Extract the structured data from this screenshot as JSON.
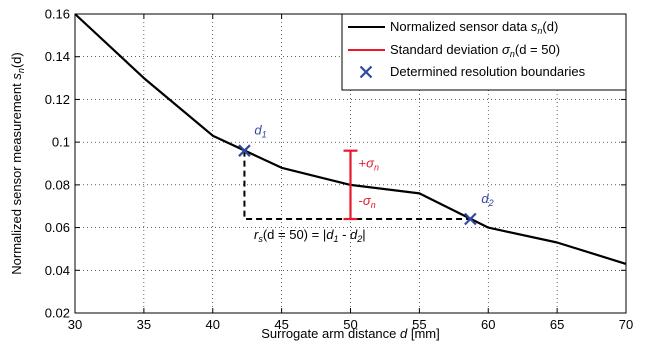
{
  "chart_data": {
    "type": "line",
    "xlabel_prefix": "Surrogate arm distance ",
    "xlabel_var": "d",
    "xlabel_unit": " [mm]",
    "ylabel_prefix": "Normalized sensor measurement ",
    "ylabel_var": "s",
    "ylabel_sub": "n",
    "ylabel_suffix": "(d)",
    "xlim": [
      30,
      70
    ],
    "ylim": [
      0.02,
      0.16
    ],
    "xticks": [
      30,
      35,
      40,
      45,
      50,
      55,
      60,
      65,
      70
    ],
    "yticks": [
      0.02,
      0.04,
      0.06,
      0.08,
      0.1,
      0.12,
      0.14,
      0.16
    ],
    "ytick_labels": [
      "0.02",
      "0.04",
      "0.06",
      "0.08",
      "0.1",
      "0.12",
      "0.14",
      "0.16"
    ],
    "grid": true,
    "legend_position": "top-right",
    "colors": {
      "series": "#000000",
      "stddev": "#e8192c",
      "marker": "#2e4a9e"
    },
    "series": [
      {
        "name": "Normalized sensor data s_n(d)",
        "x": [
          30,
          35,
          40,
          45,
          50,
          55,
          60,
          65,
          70
        ],
        "y": [
          0.16,
          0.13,
          0.103,
          0.088,
          0.08,
          0.076,
          0.06,
          0.053,
          0.043
        ]
      }
    ],
    "std_dev": {
      "x": 50,
      "center": 0.08,
      "upper": 0.096,
      "lower": 0.064
    },
    "boundaries": [
      {
        "label": "d",
        "sub": "1",
        "x": 42.3,
        "y": 0.096
      },
      {
        "label": "d",
        "sub": "2",
        "x": 58.7,
        "y": 0.064
      }
    ],
    "legend": [
      {
        "prefix": "Normalized sensor data ",
        "var": "s",
        "sub": "n",
        "suffix": "(d)"
      },
      {
        "prefix": "Standard deviation ",
        "var": "σ",
        "sub": "n",
        "suffix": "(d = 50)"
      },
      {
        "prefix": "Determined resolution boundaries",
        "var": "",
        "sub": "",
        "suffix": ""
      }
    ],
    "annotations": {
      "plus_sigma": {
        "sign": "+",
        "var": "σ",
        "sub": "n"
      },
      "minus_sigma": {
        "sign": "-",
        "var": "σ",
        "sub": "n"
      },
      "resolution": {
        "pre": "r",
        "pre_sub": "s",
        "mid": "(d = 50) = |",
        "d1": "d",
        "d1_sub": "1",
        "minus": " - ",
        "d2": "d",
        "d2_sub": "2",
        "post": "|"
      }
    }
  }
}
